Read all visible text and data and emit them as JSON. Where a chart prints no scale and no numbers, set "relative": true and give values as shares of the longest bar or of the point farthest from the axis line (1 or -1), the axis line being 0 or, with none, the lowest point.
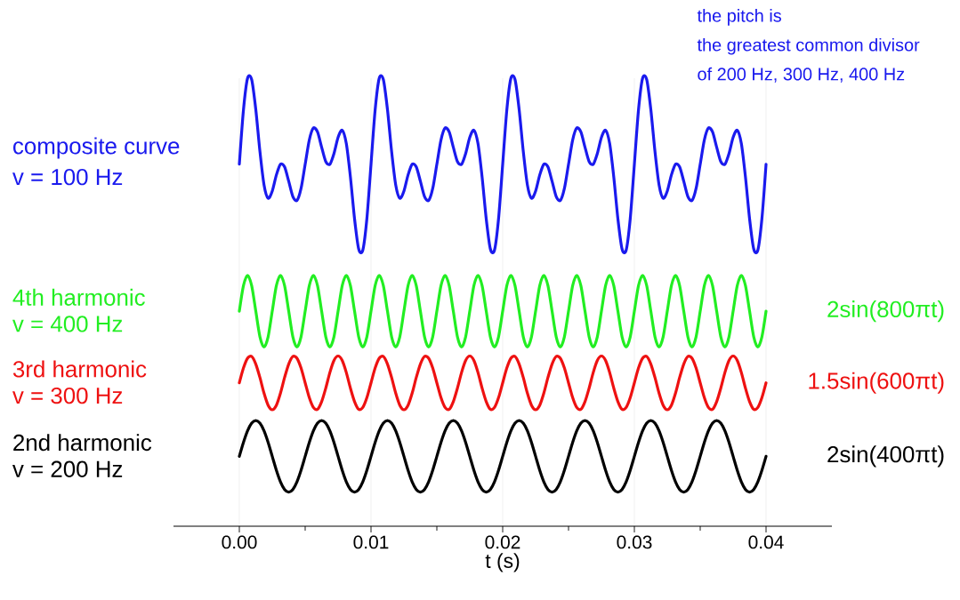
{
  "chart_data": {
    "type": "line",
    "relative": true,
    "xlabel": "t (s)",
    "xlim": [
      -0.005,
      0.045
    ],
    "xticks": [
      {
        "value": 0,
        "label": "0.00"
      },
      {
        "value": 0.01,
        "label": "0.01"
      },
      {
        "value": 0.02,
        "label": "0.02"
      },
      {
        "value": 0.03,
        "label": "0.03"
      },
      {
        "value": 0.04,
        "label": "0.04"
      }
    ],
    "grid": "x",
    "x": [
      0,
      0.0003125,
      0.000625,
      0.0009375,
      0.00125,
      0.0015625,
      0.001875,
      0.0021875,
      0.0025,
      0.0028125,
      0.003125,
      0.0034375,
      0.00375,
      0.0040625,
      0.004375,
      0.0046875,
      0.005,
      0.0053125,
      0.005625,
      0.0059375,
      0.00625,
      0.0065625,
      0.006875,
      0.0071875,
      0.0075,
      0.0078125,
      0.008125,
      0.0084375,
      0.00875,
      0.0090625,
      0.009375,
      0.0096875,
      0.01,
      0.0103125,
      0.010625,
      0.0109375,
      0.01125,
      0.0115625,
      0.011875,
      0.0121875,
      0.0125,
      0.0128125,
      0.013125,
      0.0134375,
      0.01375,
      0.0140625,
      0.014375,
      0.0146875,
      0.015,
      0.0153125,
      0.015625,
      0.0159375,
      0.01625,
      0.0165625,
      0.016875,
      0.0171875,
      0.0175,
      0.0178125,
      0.018125,
      0.0184375,
      0.01875,
      0.0190625,
      0.019375,
      0.0196875,
      0.02,
      0.0203125,
      0.020625,
      0.0209375,
      0.02125,
      0.0215625,
      0.021875,
      0.0221875,
      0.0225,
      0.0228125,
      0.023125,
      0.0234375,
      0.02375,
      0.0240625,
      0.024375,
      0.0246875,
      0.025,
      0.0253125,
      0.025625,
      0.0259375,
      0.02625,
      0.0265625,
      0.026875,
      0.0271875,
      0.0275,
      0.0278125,
      0.028125,
      0.0284375,
      0.02875,
      0.0290625,
      0.029375,
      0.0296875,
      0.03,
      0.0303125,
      0.030625,
      0.0309375,
      0.03125,
      0.0315625,
      0.031875,
      0.0321875,
      0.0325,
      0.0328125,
      0.033125,
      0.0334375,
      0.03375,
      0.0340625,
      0.034375,
      0.0346875,
      0.035,
      0.0353125,
      0.035625,
      0.0359375,
      0.03625,
      0.0365625,
      0.036875,
      0.0371875,
      0.0375,
      0.0378125,
      0.038125,
      0.0384375,
      0.03875,
      0.0390625,
      0.039375,
      0.0396875,
      0.04
    ],
    "series": [
      {
        "name": "composite curve",
        "color": "#1a1aee",
        "values": [
          0.808,
          0.929,
          1.0,
          0.997,
          0.93,
          0.837,
          0.762,
          0.732,
          0.748,
          0.784,
          0.808,
          0.802,
          0.77,
          0.736,
          0.727,
          0.754,
          0.808,
          0.862,
          0.889,
          0.88,
          0.846,
          0.814,
          0.808,
          0.832,
          0.868,
          0.884,
          0.854,
          0.779,
          0.686,
          0.619,
          0.616,
          0.687,
          0.808,
          0.929,
          1.0,
          0.997,
          0.93,
          0.837,
          0.762,
          0.732,
          0.748,
          0.784,
          0.808,
          0.802,
          0.77,
          0.736,
          0.727,
          0.754,
          0.808,
          0.862,
          0.889,
          0.88,
          0.846,
          0.814,
          0.808,
          0.832,
          0.868,
          0.884,
          0.854,
          0.779,
          0.686,
          0.619,
          0.616,
          0.687,
          0.808,
          0.929,
          1.0,
          0.997,
          0.93,
          0.837,
          0.762,
          0.732,
          0.748,
          0.784,
          0.808,
          0.802,
          0.77,
          0.736,
          0.727,
          0.754,
          0.808,
          0.862,
          0.889,
          0.88,
          0.846,
          0.814,
          0.808,
          0.832,
          0.868,
          0.884,
          0.854,
          0.779,
          0.686,
          0.619,
          0.616,
          0.687,
          0.808,
          0.929,
          1.0,
          0.997,
          0.93,
          0.837,
          0.762,
          0.732,
          0.748,
          0.784,
          0.808,
          0.802,
          0.77,
          0.736,
          0.727,
          0.754,
          0.808,
          0.862,
          0.889,
          0.88,
          0.846,
          0.814,
          0.808,
          0.832,
          0.868,
          0.884,
          0.854,
          0.779,
          0.686,
          0.619,
          0.616,
          0.687,
          0.808
        ]
      },
      {
        "name": "4th harmonic",
        "color": "#22ee22",
        "values": [
          0.48,
          0.537,
          0.56,
          0.537,
          0.48,
          0.423,
          0.4,
          0.423,
          0.48,
          0.537,
          0.56,
          0.537,
          0.48,
          0.423,
          0.4,
          0.423,
          0.48,
          0.537,
          0.56,
          0.537,
          0.48,
          0.423,
          0.4,
          0.423,
          0.48,
          0.537,
          0.56,
          0.537,
          0.48,
          0.423,
          0.4,
          0.423,
          0.48,
          0.537,
          0.56,
          0.537,
          0.48,
          0.423,
          0.4,
          0.423,
          0.48,
          0.537,
          0.56,
          0.537,
          0.48,
          0.423,
          0.4,
          0.423,
          0.48,
          0.537,
          0.56,
          0.537,
          0.48,
          0.423,
          0.4,
          0.423,
          0.48,
          0.537,
          0.56,
          0.537,
          0.48,
          0.423,
          0.4,
          0.423,
          0.48,
          0.537,
          0.56,
          0.537,
          0.48,
          0.423,
          0.4,
          0.423,
          0.48,
          0.537,
          0.56,
          0.537,
          0.48,
          0.423,
          0.4,
          0.423,
          0.48,
          0.537,
          0.56,
          0.537,
          0.48,
          0.423,
          0.4,
          0.423,
          0.48,
          0.537,
          0.56,
          0.537,
          0.48,
          0.423,
          0.4,
          0.423,
          0.48,
          0.537,
          0.56,
          0.537,
          0.48,
          0.423,
          0.4,
          0.423,
          0.48,
          0.537,
          0.56,
          0.537,
          0.48,
          0.423,
          0.4,
          0.423,
          0.48,
          0.537,
          0.56,
          0.537,
          0.48,
          0.423,
          0.4,
          0.423,
          0.48,
          0.537,
          0.56,
          0.537,
          0.48,
          0.423,
          0.4,
          0.423,
          0.48
        ]
      },
      {
        "name": "3rd harmonic",
        "color": "#ee1111",
        "values": [
          0.32,
          0.353,
          0.375,
          0.379,
          0.362,
          0.332,
          0.297,
          0.27,
          0.26,
          0.27,
          0.297,
          0.332,
          0.362,
          0.379,
          0.375,
          0.353,
          0.32,
          0.287,
          0.265,
          0.261,
          0.278,
          0.308,
          0.343,
          0.37,
          0.38,
          0.37,
          0.343,
          0.308,
          0.278,
          0.261,
          0.265,
          0.287,
          0.32,
          0.353,
          0.375,
          0.379,
          0.362,
          0.332,
          0.297,
          0.27,
          0.26,
          0.27,
          0.297,
          0.332,
          0.362,
          0.379,
          0.375,
          0.353,
          0.32,
          0.287,
          0.265,
          0.261,
          0.278,
          0.308,
          0.343,
          0.37,
          0.38,
          0.37,
          0.343,
          0.308,
          0.278,
          0.261,
          0.265,
          0.287,
          0.32,
          0.353,
          0.375,
          0.379,
          0.362,
          0.332,
          0.297,
          0.27,
          0.26,
          0.27,
          0.297,
          0.332,
          0.362,
          0.379,
          0.375,
          0.353,
          0.32,
          0.287,
          0.265,
          0.261,
          0.278,
          0.308,
          0.343,
          0.37,
          0.38,
          0.37,
          0.343,
          0.308,
          0.278,
          0.261,
          0.265,
          0.287,
          0.32,
          0.353,
          0.375,
          0.379,
          0.362,
          0.332,
          0.297,
          0.27,
          0.26,
          0.27,
          0.297,
          0.332,
          0.362,
          0.379,
          0.375,
          0.353,
          0.32,
          0.287,
          0.265,
          0.261,
          0.278,
          0.308,
          0.343,
          0.37,
          0.38,
          0.37,
          0.343,
          0.308,
          0.278,
          0.261,
          0.265,
          0.287,
          0.32
        ]
      },
      {
        "name": "2nd harmonic",
        "color": "#000000",
        "values": [
          0.156,
          0.187,
          0.213,
          0.23,
          0.236,
          0.23,
          0.213,
          0.187,
          0.156,
          0.125,
          0.099,
          0.082,
          0.076,
          0.082,
          0.099,
          0.125,
          0.156,
          0.187,
          0.213,
          0.23,
          0.236,
          0.23,
          0.213,
          0.187,
          0.156,
          0.125,
          0.099,
          0.082,
          0.076,
          0.082,
          0.099,
          0.125,
          0.156,
          0.187,
          0.213,
          0.23,
          0.236,
          0.23,
          0.213,
          0.187,
          0.156,
          0.125,
          0.099,
          0.082,
          0.076,
          0.082,
          0.099,
          0.125,
          0.156,
          0.187,
          0.213,
          0.23,
          0.236,
          0.23,
          0.213,
          0.187,
          0.156,
          0.125,
          0.099,
          0.082,
          0.076,
          0.082,
          0.099,
          0.125,
          0.156,
          0.187,
          0.213,
          0.23,
          0.236,
          0.23,
          0.213,
          0.187,
          0.156,
          0.125,
          0.099,
          0.082,
          0.076,
          0.082,
          0.099,
          0.125,
          0.156,
          0.187,
          0.213,
          0.23,
          0.236,
          0.23,
          0.213,
          0.187,
          0.156,
          0.125,
          0.099,
          0.082,
          0.076,
          0.082,
          0.099,
          0.125,
          0.156,
          0.187,
          0.213,
          0.23,
          0.236,
          0.23,
          0.213,
          0.187,
          0.156,
          0.125,
          0.099,
          0.082,
          0.076,
          0.082,
          0.099,
          0.125,
          0.156,
          0.187,
          0.213,
          0.23,
          0.236,
          0.23,
          0.213,
          0.187,
          0.156,
          0.125,
          0.099,
          0.082,
          0.076,
          0.082,
          0.099,
          0.125,
          0.156
        ]
      }
    ],
    "annotations": [
      "v = 100 Hz",
      "v = 400 Hz",
      "v = 300 Hz",
      "v = 200 Hz",
      "2sin(800πt)",
      "1.5sin(600πt)",
      "2sin(400πt)",
      "the pitch is",
      "the greatest common divisor",
      "of 200 Hz, 300 Hz, 400 Hz"
    ]
  }
}
